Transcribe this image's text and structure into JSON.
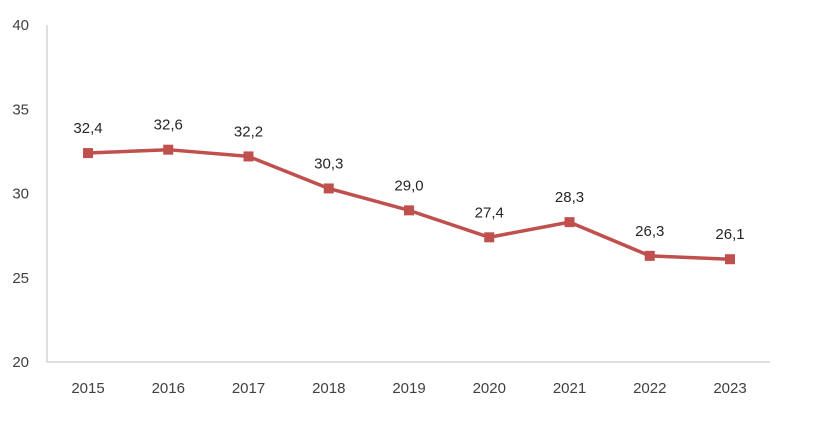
{
  "chart_data": {
    "type": "line",
    "title": "",
    "xlabel": "",
    "ylabel": "",
    "categories": [
      "2015",
      "2016",
      "2017",
      "2018",
      "2019",
      "2020",
      "2021",
      "2022",
      "2023"
    ],
    "series": [
      {
        "values": [
          32.4,
          32.6,
          32.2,
          30.3,
          29.0,
          27.4,
          28.3,
          26.3,
          26.1
        ],
        "labels": [
          "32,4",
          "32,6",
          "32,2",
          "30,3",
          "29,0",
          "27,4",
          "28,3",
          "26,3",
          "26,1"
        ],
        "color": "#c0504d"
      }
    ],
    "ylim": [
      20,
      40
    ],
    "yticks": [
      "20",
      "25",
      "30",
      "35",
      "40"
    ],
    "grid": false,
    "legend": "none",
    "marker": "square"
  }
}
